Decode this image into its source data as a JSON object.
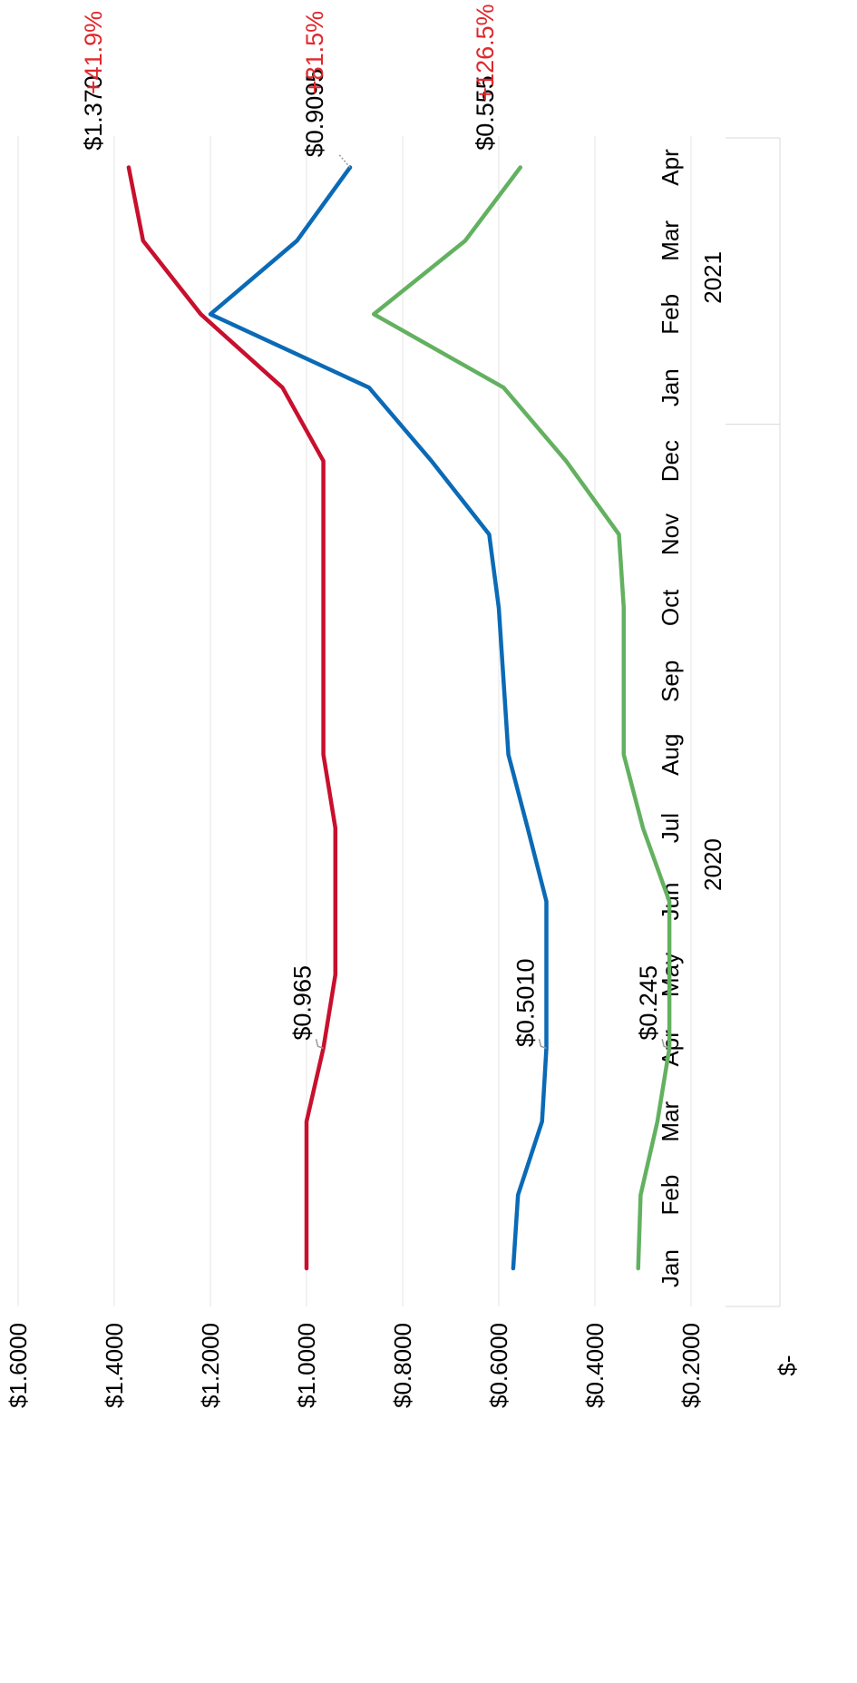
{
  "chart_data": {
    "type": "line",
    "orientation": "rotated-90",
    "x": [
      "Jan",
      "Feb",
      "Mar",
      "Apr",
      "May",
      "Jun",
      "Jul",
      "Aug",
      "Sep",
      "Oct",
      "Nov",
      "Dec",
      "Jan",
      "Feb",
      "Mar",
      "Apr"
    ],
    "year_groups": [
      {
        "label": "2020",
        "months": 12
      },
      {
        "label": "2021",
        "months": 4
      }
    ],
    "ylim": [
      0,
      1.6
    ],
    "yticks": [
      {
        "value": 0,
        "label": "$-"
      },
      {
        "value": 0.2,
        "label": "$0.2000"
      },
      {
        "value": 0.4,
        "label": "$0.4000"
      },
      {
        "value": 0.6,
        "label": "$0.6000"
      },
      {
        "value": 0.8,
        "label": "$0.8000"
      },
      {
        "value": 1.0,
        "label": "$1.0000"
      },
      {
        "value": 1.2,
        "label": "$1.2000"
      },
      {
        "value": 1.4,
        "label": "$1.4000"
      },
      {
        "value": 1.6,
        "label": "$1.6000"
      }
    ],
    "grid": true,
    "series": [
      {
        "color": "#c8102e",
        "values": [
          1.0,
          1.0,
          1.0,
          0.965,
          0.94,
          0.94,
          0.94,
          0.965,
          0.965,
          0.965,
          0.965,
          0.965,
          1.05,
          1.22,
          1.34,
          1.37
        ],
        "start_label": "$0.965",
        "start_label_index": 3,
        "end_label": "$1.370",
        "change_label": "+41.9%"
      },
      {
        "color": "#0a6ab6",
        "values": [
          0.57,
          0.56,
          0.51,
          0.501,
          0.501,
          0.501,
          0.54,
          0.58,
          0.59,
          0.6,
          0.62,
          0.74,
          0.87,
          1.2,
          1.02,
          0.9095
        ],
        "start_label": "$0.5010",
        "start_label_index": 3,
        "end_label": "$0.9095",
        "change_label": "+81.5%"
      },
      {
        "color": "#63b160",
        "values": [
          0.31,
          0.305,
          0.27,
          0.245,
          0.245,
          0.245,
          0.3,
          0.34,
          0.34,
          0.34,
          0.35,
          0.46,
          0.59,
          0.86,
          0.67,
          0.555
        ],
        "start_label": "$0.245",
        "start_label_index": 3,
        "end_label": "$0.555",
        "change_label": "+126.5%"
      }
    ],
    "change_label_color": "#e0282e"
  }
}
